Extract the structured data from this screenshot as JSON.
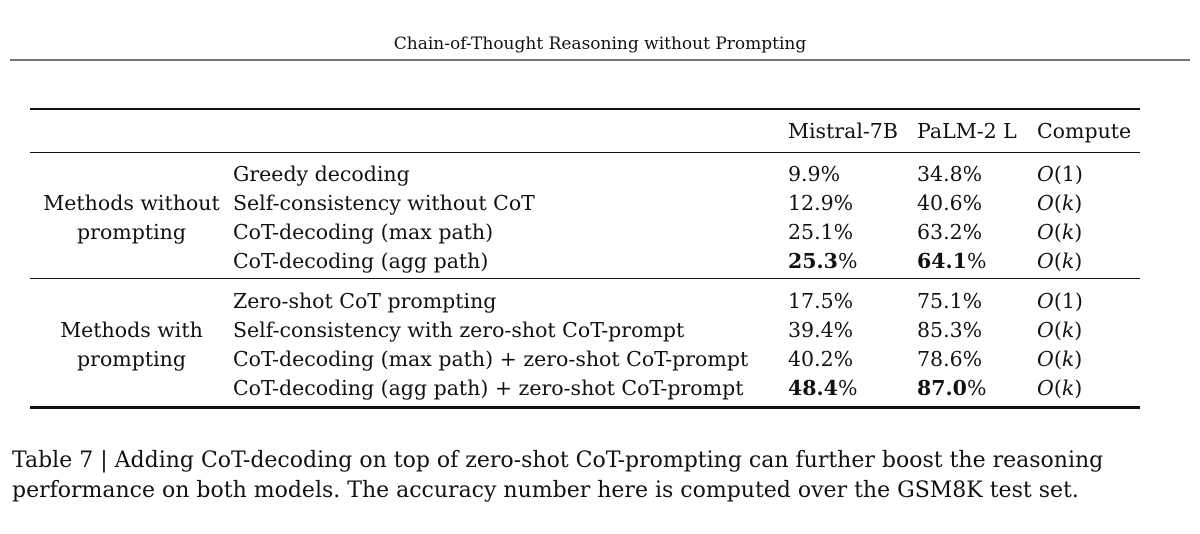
{
  "page": {
    "running_head": "Chain-of-Thought Reasoning without Prompting"
  },
  "table": {
    "columns": [
      "",
      "",
      "Mistral-7B",
      "PaLM-2 L",
      "Compute"
    ],
    "groups": [
      {
        "label": "Methods without prompting",
        "rows": [
          {
            "method": "Greedy decoding",
            "mistral": "9.9%",
            "palm": "34.8%",
            "compute": "O(1)",
            "bold": false
          },
          {
            "method": "Self-consistency without CoT",
            "mistral": "12.9%",
            "palm": "40.6%",
            "compute": "O(k)",
            "bold": false
          },
          {
            "method": "CoT-decoding (max path)",
            "mistral": "25.1%",
            "palm": "63.2%",
            "compute": "O(k)",
            "bold": false
          },
          {
            "method": "CoT-decoding (agg path)",
            "mistral": "25.3%",
            "palm": "64.1%",
            "compute": "O(k)",
            "bold": true
          }
        ]
      },
      {
        "label": "Methods with prompting",
        "rows": [
          {
            "method": "Zero-shot CoT prompting",
            "mistral": "17.5%",
            "palm": "75.1%",
            "compute": "O(1)",
            "bold": false
          },
          {
            "method": "Self-consistency with zero-shot CoT-prompt",
            "mistral": "39.4%",
            "palm": "85.3%",
            "compute": "O(k)",
            "bold": false
          },
          {
            "method": "CoT-decoding (max path) + zero-shot CoT-prompt",
            "mistral": "40.2%",
            "palm": "78.6%",
            "compute": "O(k)",
            "bold": false
          },
          {
            "method": "CoT-decoding (agg path) + zero-shot CoT-prompt",
            "mistral": "48.4%",
            "palm": "87.0%",
            "compute": "O(k)",
            "bold": true
          }
        ]
      }
    ]
  },
  "caption": {
    "label": "Table 7",
    "separator": "|",
    "text": "Adding CoT-decoding on top of zero-shot CoT-prompting can further boost the reasoning performance on both models. The accuracy number here is computed over the GSM8K test set."
  },
  "colors": {
    "background": "#ffffff",
    "text": "#111111",
    "table_rule": "#111111",
    "head_rule": "#757575"
  }
}
